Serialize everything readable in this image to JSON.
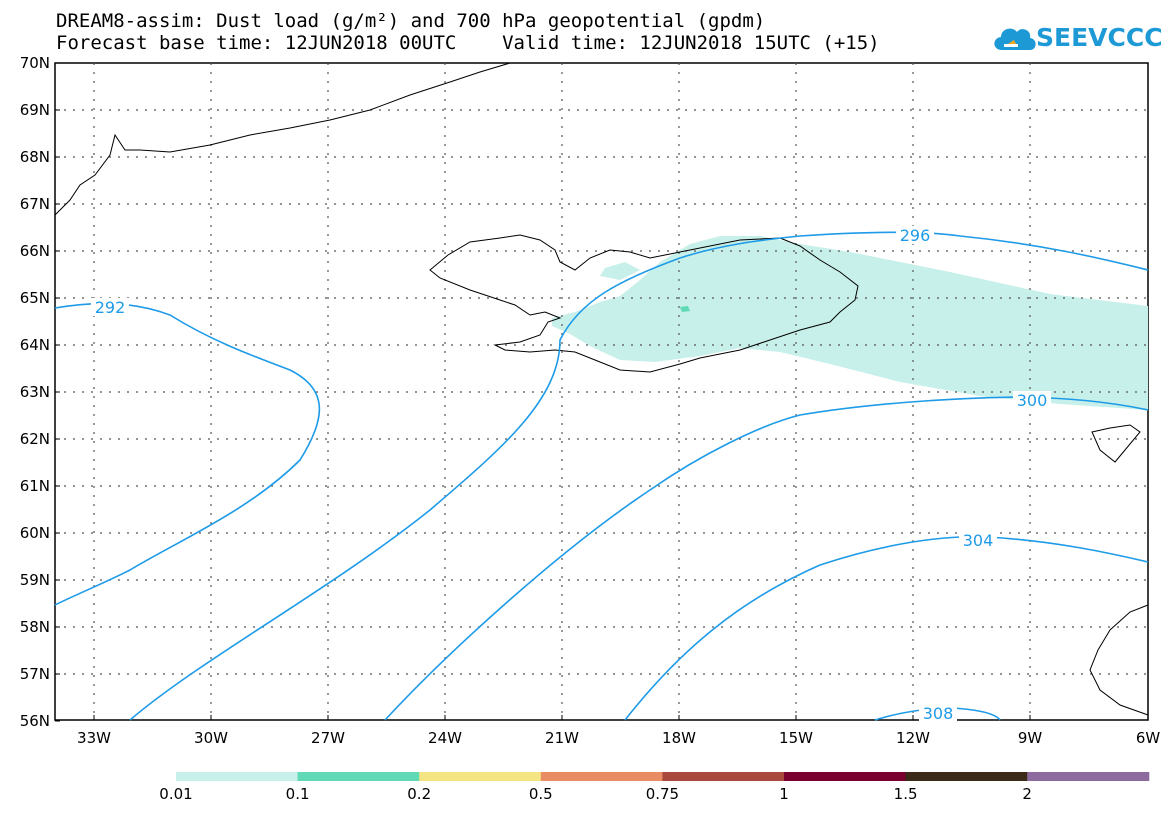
{
  "header": {
    "title_line1": "DREAM8-assim: Dust load (g/m²) and 700 hPa geopotential (gpdm)",
    "title_line2": "Forecast base time: 12JUN2018 00UTC    Valid time: 12JUN2018 15UTC (+15)"
  },
  "logo": {
    "text": "SEEVCCC",
    "color": "#1d9ad6"
  },
  "map": {
    "lat_labels": [
      "70N",
      "69N",
      "68N",
      "67N",
      "66N",
      "65N",
      "64N",
      "63N",
      "62N",
      "61N",
      "60N",
      "59N",
      "58N",
      "57N",
      "56N"
    ],
    "lon_labels": [
      "33W",
      "30W",
      "27W",
      "24W",
      "21W",
      "18W",
      "15W",
      "12W",
      "9W",
      "6W"
    ],
    "contour_labels": [
      "292",
      "296",
      "300",
      "304",
      "308"
    ],
    "contour_color": "#1e9be8",
    "dust_color": "#c7f0ea"
  },
  "colorbar": {
    "labels": [
      "0.01",
      "0.1",
      "0.2",
      "0.5",
      "0.75",
      "1",
      "1.5",
      "2"
    ],
    "colors": [
      "#c7f0ea",
      "#5fd9b6",
      "#f4e482",
      "#e88c63",
      "#a9493e",
      "#7a0030",
      "#3a2a17",
      "#8e6b9e"
    ]
  }
}
